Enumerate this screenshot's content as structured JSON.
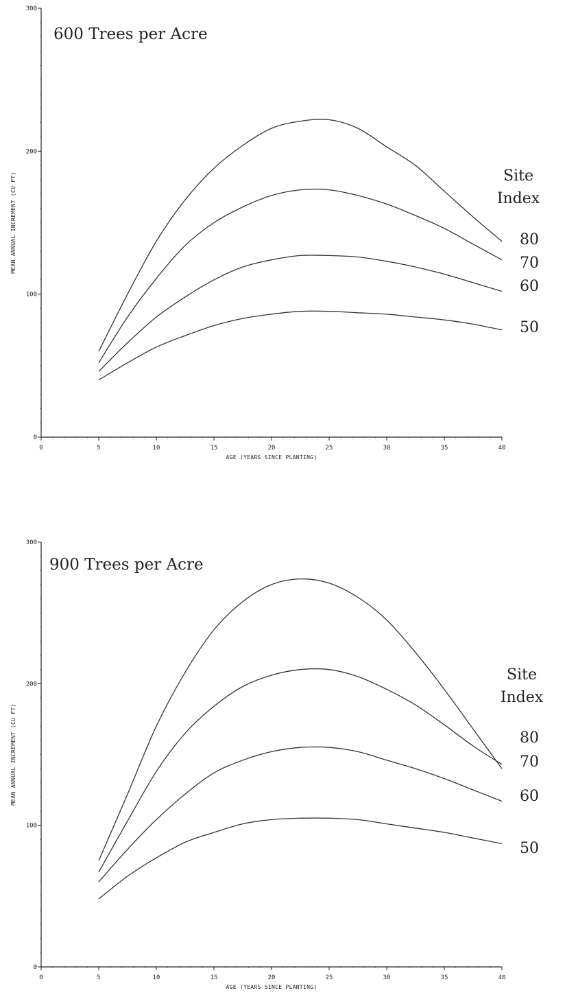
{
  "chart_data": [
    {
      "type": "line",
      "title": "600 Trees per Acre",
      "xlabel": "AGE (YEARS SINCE PLANTING)",
      "ylabel": "MEAN ANNUAL INCREMENT (CU FT)",
      "xlim": [
        0,
        40
      ],
      "ylim": [
        0,
        300
      ],
      "xticks": [
        "0",
        "5",
        "10",
        "15",
        "20",
        "25",
        "30",
        "35",
        "40"
      ],
      "yticks": [
        "0",
        "100",
        "200",
        "300"
      ],
      "legend_title": [
        "Site",
        "Index"
      ],
      "x": [
        5,
        7.5,
        10,
        12.5,
        15,
        17.5,
        20,
        22.5,
        25,
        27.5,
        30,
        32.5,
        35,
        37.5,
        40
      ],
      "series": [
        {
          "name": "80",
          "values": [
            60,
            100,
            137,
            166,
            188,
            204,
            216,
            221,
            222,
            216,
            203,
            190,
            172,
            154,
            137
          ]
        },
        {
          "name": "70",
          "values": [
            52,
            84,
            111,
            134,
            150,
            161,
            169,
            173,
            173,
            169,
            163,
            155,
            146,
            135,
            124
          ]
        },
        {
          "name": "60",
          "values": [
            46,
            66,
            84,
            98,
            110,
            119,
            124,
            127,
            127,
            126,
            123,
            119,
            114,
            108,
            102
          ]
        },
        {
          "name": "50",
          "values": [
            40,
            52,
            63,
            71,
            78,
            83,
            86,
            88,
            88,
            87,
            86,
            84,
            82,
            79,
            75
          ]
        }
      ]
    },
    {
      "type": "line",
      "title": "900 Trees per Acre",
      "xlabel": "AGE (YEARS SINCE PLANTING)",
      "ylabel": "MEAN ANNUAL INCREMENT (CU FT)",
      "xlim": [
        0,
        40
      ],
      "ylim": [
        0,
        300
      ],
      "xticks": [
        "0",
        "5",
        "10",
        "15",
        "20",
        "25",
        "30",
        "35",
        "40"
      ],
      "yticks": [
        "0",
        "100",
        "200",
        "300"
      ],
      "legend_title": [
        "Site",
        "Index"
      ],
      "x": [
        5,
        7.5,
        10,
        12.5,
        15,
        17.5,
        20,
        22.5,
        25,
        27.5,
        30,
        32.5,
        35,
        37.5,
        40
      ],
      "series": [
        {
          "name": "80",
          "values": [
            75,
            122,
            170,
            208,
            238,
            258,
            270,
            274,
            271,
            261,
            245,
            222,
            196,
            168,
            140
          ]
        },
        {
          "name": "70",
          "values": [
            67,
            103,
            138,
            165,
            184,
            198,
            206,
            210,
            210,
            205,
            196,
            185,
            171,
            156,
            143
          ]
        },
        {
          "name": "60",
          "values": [
            60,
            83,
            104,
            122,
            137,
            146,
            152,
            155,
            155,
            152,
            146,
            140,
            133,
            125,
            117
          ]
        },
        {
          "name": "50",
          "values": [
            48,
            64,
            77,
            88,
            95,
            101,
            104,
            105,
            105,
            104,
            101,
            98,
            95,
            91,
            87
          ]
        }
      ]
    }
  ]
}
